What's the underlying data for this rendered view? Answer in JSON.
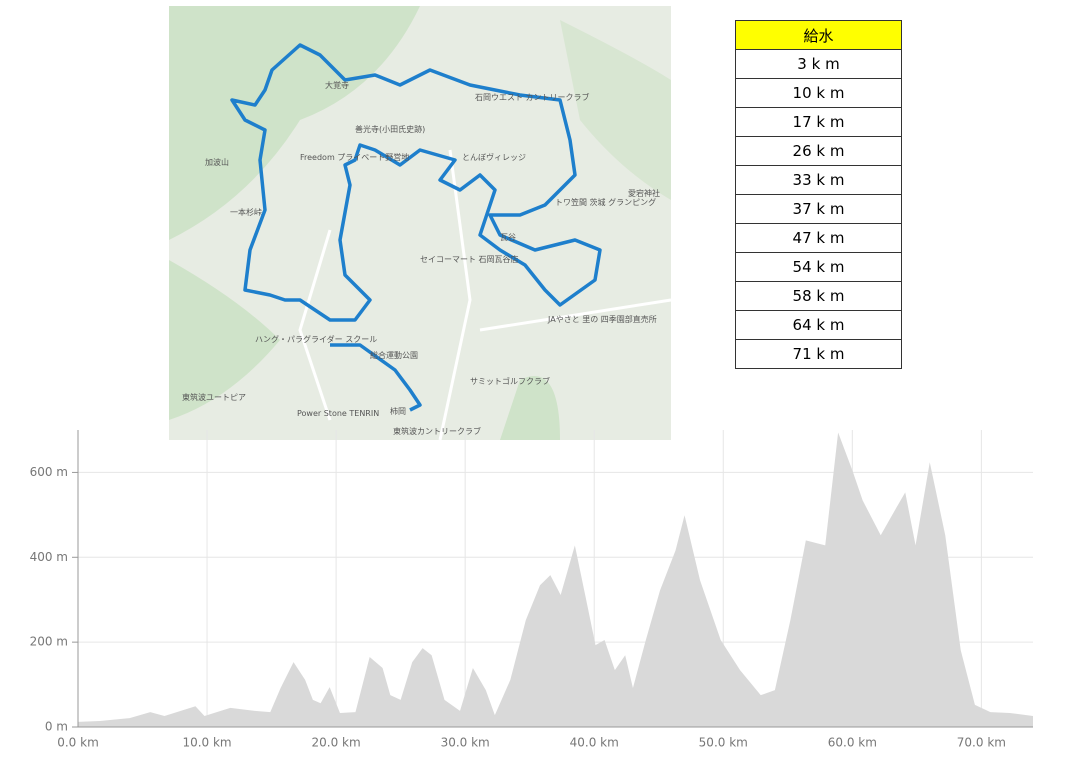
{
  "map": {
    "labels": [
      "大覚寺",
      "石岡ウエスト カントリークラブ",
      "善光寺(小田氏史跡)",
      "Freedom プライベート野営地",
      "とんぼヴィレッジ",
      "加波山",
      "一本杉峠",
      "トワ笠間 茨城 グランピング",
      "セイコーマート 石岡瓦谷店",
      "JAやさと 里の 四季園部直売所",
      "ハング・パラグライダー スクール",
      "総合運動公園",
      "サミットゴルフクラブ",
      "東筑波ユートピア",
      "Power Stone TENRIN",
      "東筑波カントリークラブ",
      "愛宕神社",
      "瓦谷",
      "柿岡"
    ]
  },
  "table": {
    "header": "給水",
    "rows": [
      "3 k m",
      "10 k m",
      "17 k m",
      "26 k m",
      "33 k m",
      "37 k m",
      "47 k m",
      "54 k m",
      "58 k m",
      "64 k m",
      "71 k m"
    ]
  },
  "chart_data": {
    "type": "area",
    "color": "#d9d9d9",
    "x": [
      0,
      1.7,
      4.0,
      5.6,
      6.7,
      9.1,
      9.8,
      11.8,
      13.7,
      14.9,
      15.7,
      16.7,
      17.6,
      18.2,
      18.8,
      19.5,
      20.3,
      21.5,
      22.6,
      23.6,
      24.2,
      25.0,
      25.9,
      26.7,
      27.4,
      28.4,
      29.6,
      30.6,
      31.6,
      32.3,
      33.5,
      34.7,
      35.8,
      36.6,
      37.4,
      38.5,
      39.3,
      40.1,
      40.8,
      41.6,
      42.4,
      43.0,
      44.0,
      45.1,
      46.3,
      47.0,
      48.2,
      49.8,
      51.3,
      52.9,
      54.0,
      55.2,
      56.4,
      57.9,
      58.9,
      60.0,
      60.8,
      62.2,
      63.3,
      64.1,
      64.9,
      66.0,
      67.2,
      68.4,
      69.5,
      70.7,
      72.2,
      74.0
    ],
    "values": [
      12,
      14,
      21,
      35,
      26,
      49,
      26,
      45,
      38,
      35,
      92,
      153,
      111,
      64,
      56,
      94,
      33,
      35,
      165,
      139,
      75,
      64,
      153,
      186,
      169,
      64,
      38,
      139,
      87,
      28,
      111,
      252,
      334,
      358,
      311,
      428,
      311,
      193,
      205,
      134,
      169,
      92,
      205,
      322,
      416,
      499,
      346,
      205,
      134,
      75,
      87,
      252,
      440,
      428,
      694,
      605,
      534,
      452,
      511,
      553,
      428,
      624,
      452,
      181,
      52,
      35,
      33,
      26
    ],
    "xlim": [
      0,
      74
    ],
    "ylim": [
      0,
      700
    ],
    "xticks": [
      {
        "value": 0,
        "label": "0.0 km"
      },
      {
        "value": 10,
        "label": "10.0 km"
      },
      {
        "value": 20,
        "label": "20.0 km"
      },
      {
        "value": 30,
        "label": "30.0 km"
      },
      {
        "value": 40,
        "label": "40.0 km"
      },
      {
        "value": 50,
        "label": "50.0 km"
      },
      {
        "value": 60,
        "label": "60.0 km"
      },
      {
        "value": 70,
        "label": "70.0 km"
      }
    ],
    "yticks": [
      {
        "value": 0,
        "label": "0 m"
      },
      {
        "value": 200,
        "label": "200 m"
      },
      {
        "value": 400,
        "label": "400 m"
      },
      {
        "value": 600,
        "label": "600 m"
      }
    ],
    "grid": true
  }
}
